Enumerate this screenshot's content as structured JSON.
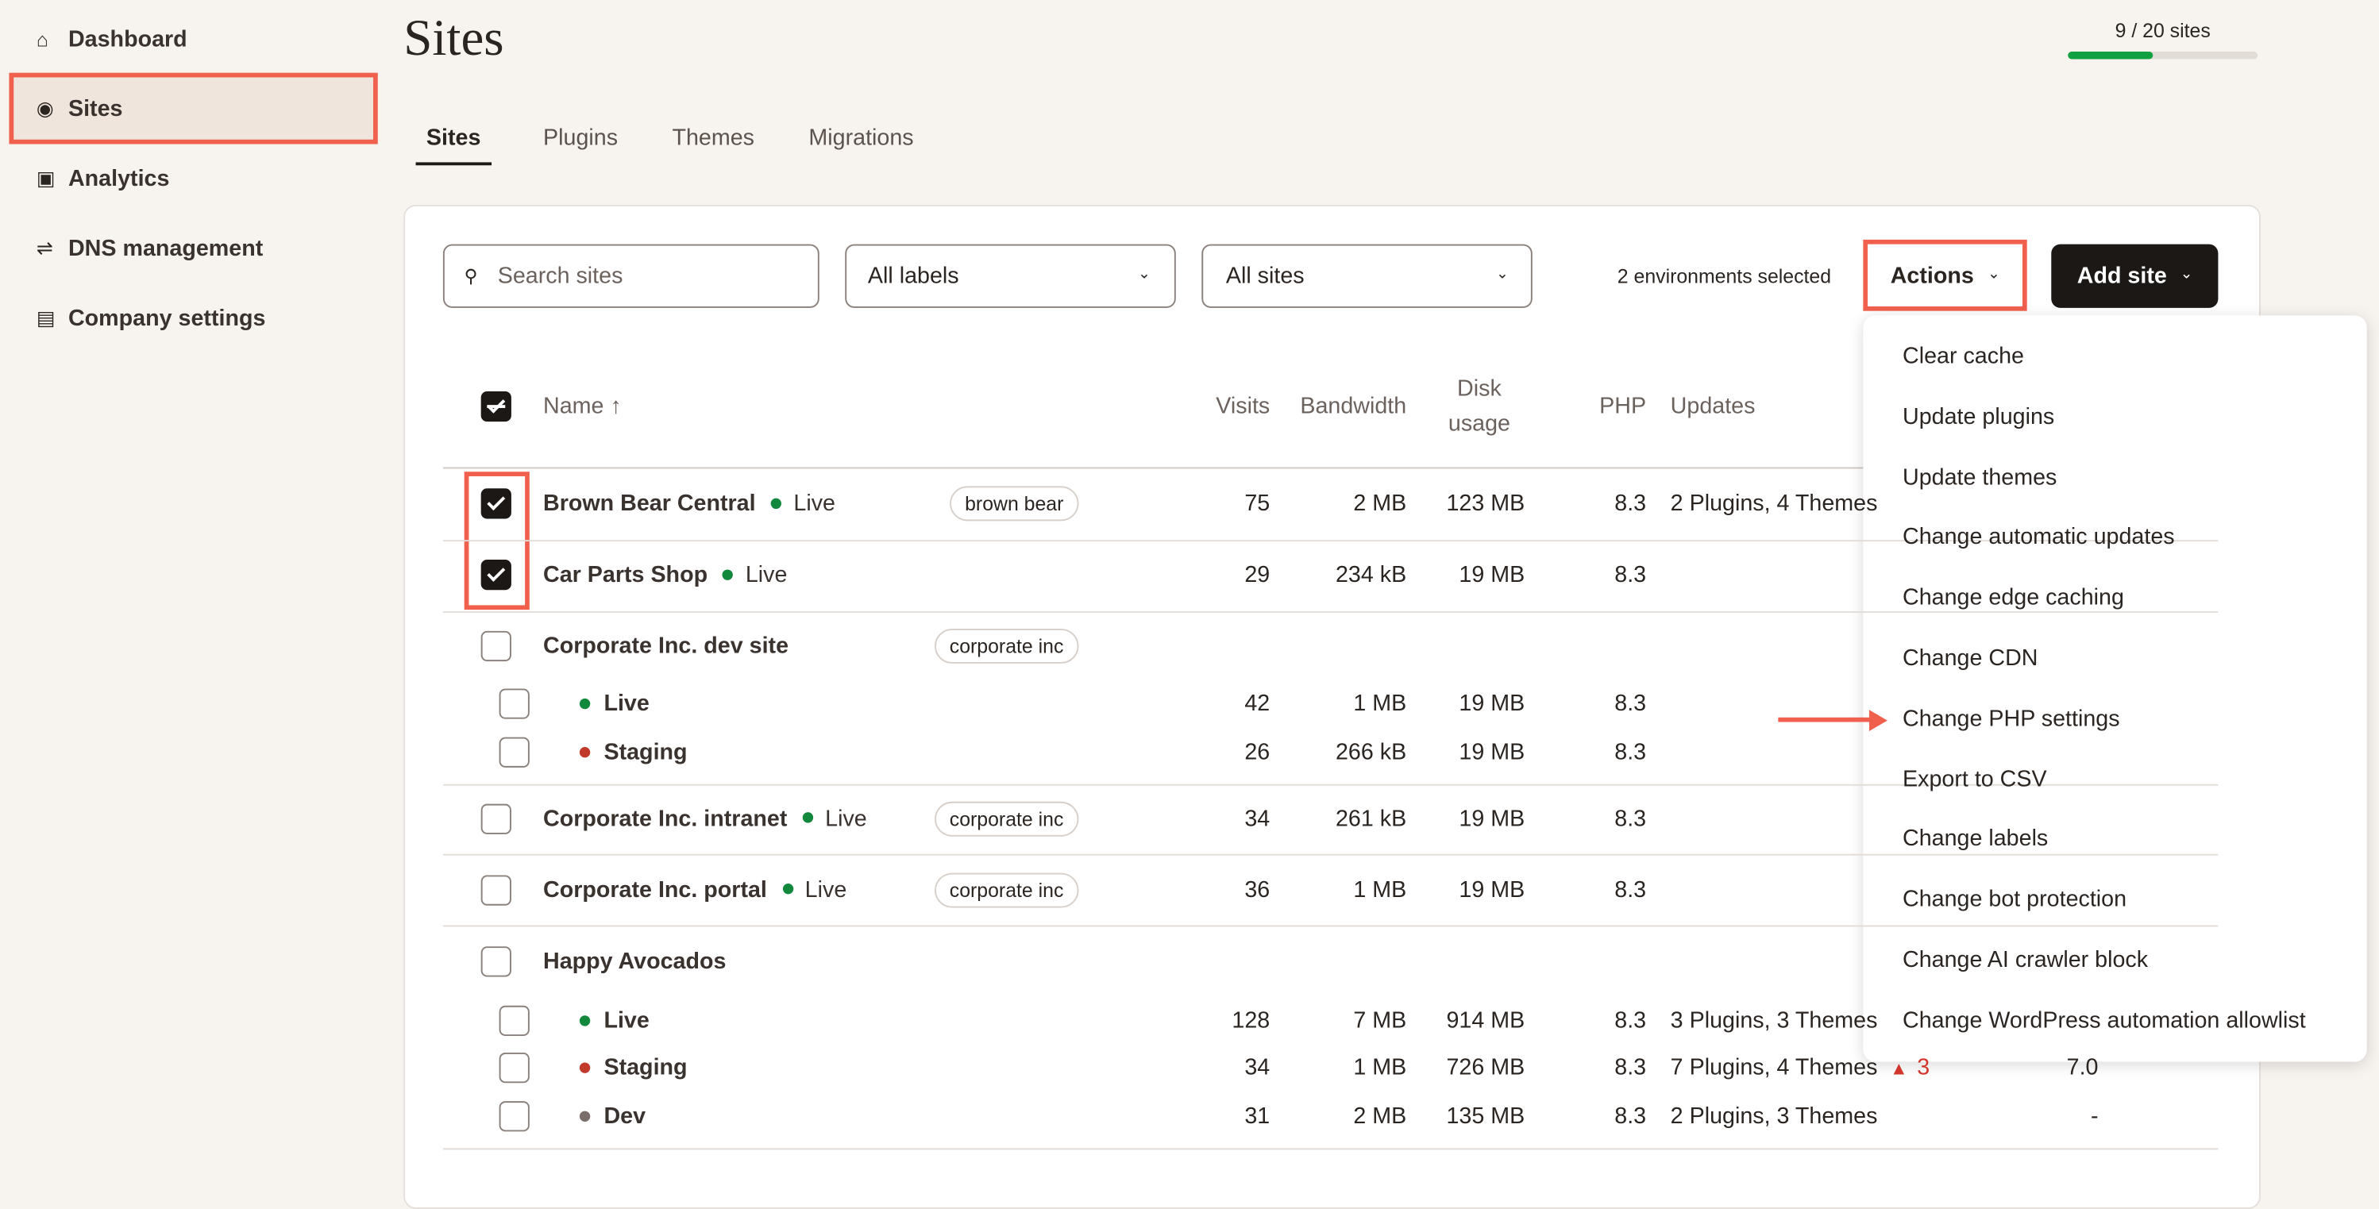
{
  "sidebar": {
    "items": [
      "Dashboard",
      "Sites",
      "Analytics",
      "DNS management",
      "Company settings"
    ]
  },
  "header": {
    "title": "Sites",
    "usage": "9 / 20 sites"
  },
  "tabs": [
    "Sites",
    "Plugins",
    "Themes",
    "Migrations"
  ],
  "toolbar": {
    "search_placeholder": "Search sites",
    "labels_filter": "All labels",
    "sites_filter": "All sites",
    "selection": "2 environments selected",
    "actions": "Actions",
    "add_site": "Add site"
  },
  "table": {
    "columns": {
      "name": "Name ↑",
      "visits": "Visits",
      "bandwidth": "Bandwidth",
      "disk": "Disk usage",
      "php": "PHP",
      "updates": "Updates"
    },
    "rows": [
      {
        "name": "Brown Bear Central",
        "status": "Live",
        "label": "brown bear",
        "visits": 75,
        "bandwidth": "2 MB",
        "disk": "123 MB",
        "php": "8.3",
        "updates": "2 Plugins, 4 Themes",
        "checked": true
      },
      {
        "name": "Car Parts Shop",
        "status": "Live",
        "visits": 29,
        "bandwidth": "234 kB",
        "disk": "19 MB",
        "php": "8.3",
        "checked": true
      },
      {
        "name": "Corporate Inc. dev site",
        "label": "corporate inc",
        "environments": [
          {
            "name": "Live",
            "visits": 42,
            "bandwidth": "1 MB",
            "disk": "19 MB",
            "php": "8.3"
          },
          {
            "name": "Staging",
            "visits": 26,
            "bandwidth": "266 kB",
            "disk": "19 MB",
            "php": "8.3"
          }
        ]
      },
      {
        "name": "Corporate Inc. intranet",
        "status": "Live",
        "label": "corporate inc",
        "visits": 34,
        "bandwidth": "261 kB",
        "disk": "19 MB",
        "php": "8.3"
      },
      {
        "name": "Corporate Inc. portal",
        "status": "Live",
        "label": "corporate inc",
        "visits": 36,
        "bandwidth": "1 MB",
        "disk": "19 MB",
        "php": "8.3"
      },
      {
        "name": "Happy Avocados",
        "environments": [
          {
            "name": "Live",
            "visits": 128,
            "bandwidth": "7 MB",
            "disk": "914 MB",
            "php": "8.3",
            "updates": "3 Plugins, 3 Themes"
          },
          {
            "name": "Staging",
            "visits": 34,
            "bandwidth": "1 MB",
            "disk": "726 MB",
            "php": "8.3",
            "updates": "7 Plugins, 4 Themes",
            "warnings": "3",
            "extra": "7.0"
          },
          {
            "name": "Dev",
            "visits": 31,
            "bandwidth": "2 MB",
            "disk": "135 MB",
            "php": "8.3",
            "updates": "2 Plugins, 3 Themes",
            "extra": "-"
          }
        ]
      }
    ]
  },
  "actions_menu": [
    "Clear cache",
    "Update plugins",
    "Update themes",
    "Change automatic updates",
    "Change edge caching",
    "Change CDN",
    "Change PHP settings",
    "Export to CSV",
    "Change labels",
    "Change bot protection",
    "Change AI crawler block",
    "Change WordPress automation allowlist"
  ]
}
